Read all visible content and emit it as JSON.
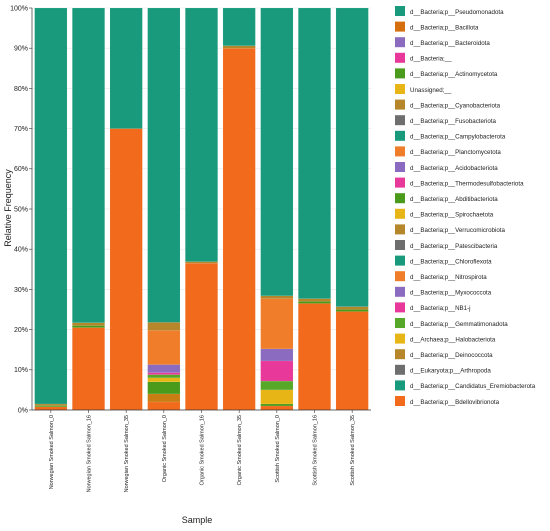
{
  "chart_data": {
    "type": "bar",
    "stacked": true,
    "xlabel": "Sample",
    "ylabel": "Relative Frequency",
    "ylim": [
      0,
      100
    ],
    "y_ticks": [
      "0%",
      "10%",
      "20%",
      "30%",
      "40%",
      "50%",
      "60%",
      "70%",
      "80%",
      "90%",
      "100%"
    ],
    "legend_position": "right",
    "categories": [
      "Norwegian Smoked Salmon_0",
      "Norwegian Smoked Salmon_16",
      "Norwegian Smoked Salmon_35",
      "Organic Smoked Salmon_0",
      "Organic Smoked Salmon_16",
      "Organic Smoked Salmon_35",
      "Scottish Smoked Salmon_0",
      "Scottish Smoked Salmon_16",
      "Scottish Smoked Salmon_35"
    ],
    "series": [
      {
        "name": "d__Bacteria;p__Bdellovibrionota",
        "color": "#f26a1b",
        "values": [
          0.8,
          20.5,
          70.0,
          2.0,
          36.5,
          90.0,
          1.0,
          26.5,
          24.5
        ]
      },
      {
        "name": "d__Bacteria;p__Bacillota",
        "color": "#c97d12",
        "values": [
          0,
          0,
          0,
          2.0,
          0,
          0,
          0,
          0,
          0
        ]
      },
      {
        "name": "d__Bacteria;p__Actinomycetota",
        "color": "#4a9a1c",
        "values": [
          0.3,
          0.5,
          0,
          3.0,
          0,
          0,
          0.5,
          0.5,
          0.5
        ]
      },
      {
        "name": "Unassigned;__",
        "color": "#e8b516",
        "values": [
          0,
          0,
          0,
          1.0,
          0,
          0,
          3.5,
          0,
          0
        ]
      },
      {
        "name": "d__Bacteria;p__Gemmatimonadota",
        "color": "#57a829",
        "values": [
          0,
          0,
          0,
          0.8,
          0,
          0,
          2.2,
          0,
          0
        ]
      },
      {
        "name": "d__Bacteria;__",
        "color": "#e8399a",
        "values": [
          0,
          0,
          0,
          0.5,
          0,
          0,
          5.0,
          0,
          0
        ]
      },
      {
        "name": "d__Bacteria;p__Bacteroidota",
        "color": "#8a6bbf",
        "values": [
          0,
          0,
          0,
          2.0,
          0,
          0,
          3.0,
          0,
          0
        ]
      },
      {
        "name": "d__Bacteria;p__Planctomycetota",
        "color": "#f07d2a",
        "values": [
          0,
          0,
          0,
          8.5,
          0,
          0,
          12.5,
          0,
          0
        ]
      },
      {
        "name": "d__Bacteria;p__Cyanobacteriota",
        "color": "#b5862a",
        "values": [
          0.4,
          0.7,
          0,
          2.0,
          0.4,
          0.6,
          0.7,
          0.7,
          0.7
        ]
      },
      {
        "name": "d__Bacteria;p__Pseudomonadota",
        "color": "#1a9a7c",
        "values": [
          98.5,
          78.3,
          30.0,
          78.2,
          63.1,
          9.4,
          71.6,
          72.3,
          74.3
        ]
      }
    ],
    "legend": [
      {
        "name": "d__Bacteria;p__Pseudomonadota",
        "color": "#1a9a7c"
      },
      {
        "name": "d__Bacteria;p__Bacillota",
        "color": "#d66f0d"
      },
      {
        "name": "d__Bacteria;p__Bacteroidota",
        "color": "#8a6bbf"
      },
      {
        "name": "d__Bacteria;__",
        "color": "#e8399a"
      },
      {
        "name": "d__Bacteria;p__Actinomycetota",
        "color": "#4a9a1c"
      },
      {
        "name": "Unassigned;__",
        "color": "#e8b516"
      },
      {
        "name": "d__Bacteria;p__Cyanobacteriota",
        "color": "#b5862a"
      },
      {
        "name": "d__Bacteria;p__Fusobacteriota",
        "color": "#6e6e6e"
      },
      {
        "name": "d__Bacteria;p__Campylobacterota",
        "color": "#1a9a7c"
      },
      {
        "name": "d__Bacteria;p__Planctomycetota",
        "color": "#f07d2a"
      },
      {
        "name": "d__Bacteria;p__Acidobacteriota",
        "color": "#8a6bbf"
      },
      {
        "name": "d__Bacteria;p__Thermodesulfobacteriota",
        "color": "#e8399a"
      },
      {
        "name": "d__Bacteria;p__Abditibacteriota",
        "color": "#4a9a1c"
      },
      {
        "name": "d__Bacteria;p__Spirochaetota",
        "color": "#e8b516"
      },
      {
        "name": "d__Bacteria;p__Verrucomicrobiota",
        "color": "#b5862a"
      },
      {
        "name": "d__Bacteria;p__Patescibacteria",
        "color": "#6e6e6e"
      },
      {
        "name": "d__Bacteria;p__Chloroflexota",
        "color": "#1a9a7c"
      },
      {
        "name": "d__Bacteria;p__Nitrospirota",
        "color": "#f07d2a"
      },
      {
        "name": "d__Bacteria;p__Myxococcota",
        "color": "#8a6bbf"
      },
      {
        "name": "d__Bacteria;p__NB1-j",
        "color": "#e8399a"
      },
      {
        "name": "d__Bacteria;p__Gemmatimonadota",
        "color": "#57a829"
      },
      {
        "name": "d__Archaea;p__Halobacteriota",
        "color": "#e8b516"
      },
      {
        "name": "d__Bacteria;p__Deinococcota",
        "color": "#b5862a"
      },
      {
        "name": "d__Eukaryota;p__Arthropoda",
        "color": "#6e6e6e"
      },
      {
        "name": "d__Bacteria;p__Candidatus_Eremiobacterota",
        "color": "#1a9a7c"
      },
      {
        "name": "d__Bacteria;p__Bdellovibrionota",
        "color": "#f26a1b"
      }
    ]
  }
}
